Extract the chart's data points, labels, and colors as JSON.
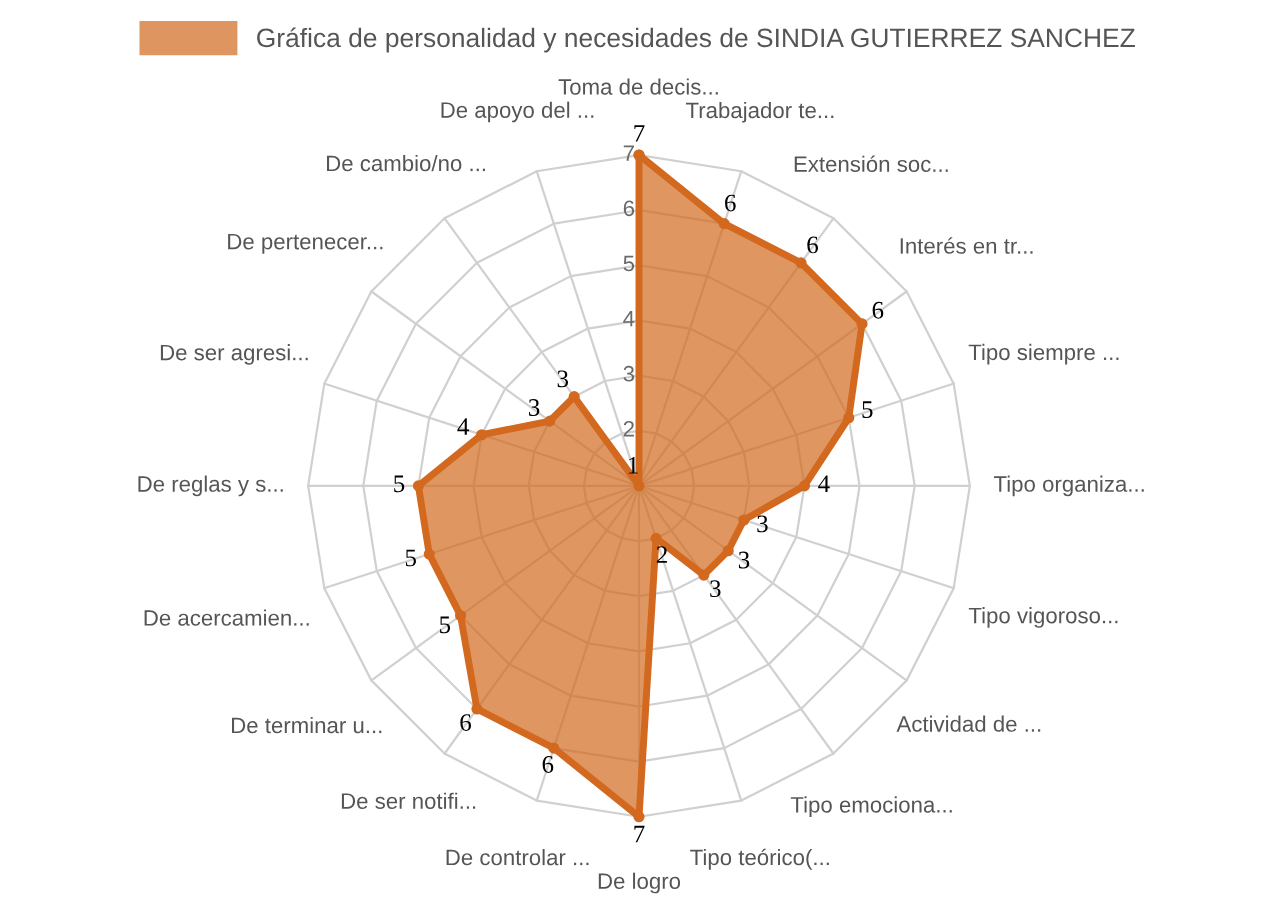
{
  "chart_data": {
    "type": "radar",
    "categories": [
      "Toma de decis...",
      "Trabajador te...",
      "Extensión soc...",
      "Interés en tr...",
      "Tipo siempre ...",
      "Tipo organiza...",
      "Tipo vigoroso...",
      "Actividad de ...",
      "Tipo emociona...",
      "Tipo teórico(...",
      "De logro",
      "De controlar ...",
      "De ser notifi...",
      "De terminar u...",
      "De acercamien...",
      "De reglas y s...",
      "De ser agresi...",
      "De pertenecer...",
      "De cambio/no ...",
      "De apoyo del ..."
    ],
    "series": [
      {
        "name": "Gráfica de personalidad y necesidades de SINDIA GUTIERREZ SANCHEZ",
        "color": "#d2691e",
        "values": [
          7,
          6,
          6,
          6,
          5,
          4,
          3,
          3,
          3,
          2,
          7,
          6,
          6,
          5,
          5,
          5,
          4,
          3,
          3,
          1
        ]
      }
    ],
    "ylim": [
      1,
      7
    ],
    "yticks": [
      2,
      3,
      4,
      5,
      6,
      7
    ],
    "grid": true,
    "legend": "top",
    "data_labels": true,
    "marker": "circle"
  }
}
